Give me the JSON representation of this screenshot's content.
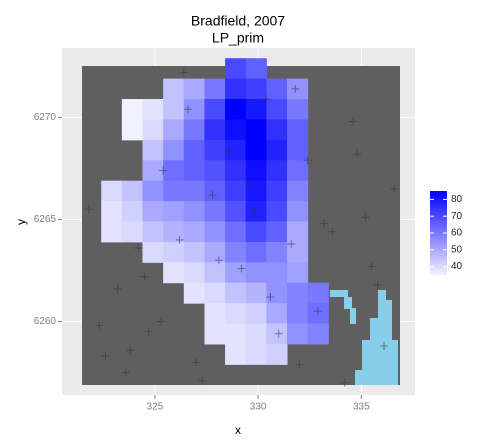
{
  "chart_data": {
    "type": "raster",
    "title": "Bradfield, 2007",
    "subtitle": "LP_prim",
    "x_label": "x",
    "y_label": "y",
    "xlim": [
      320.5,
      337.6
    ],
    "ylim": [
      6256.4,
      6273.4
    ],
    "xticks": [
      325,
      330,
      335
    ],
    "yticks": [
      6260,
      6265,
      6270
    ],
    "grid": true,
    "na_color": "#5f5f5f",
    "low_color": "#f2f2ff",
    "high_color": "#0000ff",
    "zlim": [
      35,
      85
    ],
    "legend_ticks": [
      40,
      50,
      60,
      70,
      80
    ],
    "raster": {
      "x": [
        321.9,
        322.9,
        323.9,
        324.9,
        325.9,
        326.9,
        327.9,
        328.9,
        329.9,
        330.9,
        331.9,
        332.9,
        333.9,
        334.9,
        335.9,
        336.9
      ],
      "y": [
        6272.4,
        6271.4,
        6270.4,
        6269.4,
        6268.4,
        6267.4,
        6266.4,
        6265.4,
        6264.4,
        6263.4,
        6262.4,
        6261.4,
        6260.4,
        6259.4,
        6258.4,
        6257.4
      ],
      "z": [
        [
          null,
          null,
          null,
          null,
          null,
          null,
          null,
          70,
          65,
          null,
          null,
          null,
          null,
          null,
          null,
          null
        ],
        [
          null,
          null,
          null,
          null,
          45,
          50,
          60,
          75,
          72,
          65,
          55,
          null,
          null,
          null,
          null,
          null
        ],
        [
          null,
          null,
          35,
          38,
          45,
          55,
          70,
          85,
          80,
          70,
          60,
          null,
          null,
          null,
          null,
          null
        ],
        [
          null,
          null,
          35,
          40,
          50,
          60,
          75,
          82,
          85,
          75,
          65,
          null,
          null,
          null,
          null,
          null
        ],
        [
          null,
          null,
          null,
          45,
          55,
          65,
          72,
          78,
          85,
          78,
          65,
          null,
          null,
          null,
          null,
          null
        ],
        [
          null,
          null,
          null,
          50,
          62,
          65,
          68,
          75,
          82,
          75,
          62,
          null,
          null,
          null,
          null,
          null
        ],
        [
          null,
          40,
          45,
          55,
          60,
          60,
          65,
          72,
          80,
          72,
          58,
          null,
          null,
          null,
          null,
          null
        ],
        [
          null,
          38,
          42,
          50,
          52,
          55,
          60,
          68,
          78,
          70,
          55,
          null,
          null,
          null,
          null,
          null
        ],
        [
          null,
          38,
          40,
          45,
          48,
          50,
          55,
          62,
          70,
          65,
          50,
          null,
          null,
          null,
          null,
          null
        ],
        [
          null,
          null,
          null,
          40,
          42,
          45,
          50,
          58,
          62,
          58,
          50,
          null,
          null,
          null,
          null,
          null
        ],
        [
          null,
          null,
          null,
          null,
          38,
          40,
          45,
          52,
          55,
          55,
          52,
          null,
          null,
          null,
          null,
          null
        ],
        [
          null,
          null,
          null,
          null,
          null,
          38,
          40,
          45,
          48,
          55,
          58,
          60,
          null,
          null,
          null,
          null
        ],
        [
          null,
          null,
          null,
          null,
          null,
          null,
          38,
          40,
          42,
          50,
          58,
          62,
          null,
          null,
          null,
          null
        ],
        [
          null,
          null,
          null,
          null,
          null,
          null,
          38,
          38,
          40,
          45,
          55,
          58,
          null,
          null,
          null,
          null
        ],
        [
          null,
          null,
          null,
          null,
          null,
          null,
          null,
          38,
          40,
          42,
          null,
          null,
          null,
          null,
          null,
          null
        ],
        [
          null,
          null,
          null,
          null,
          null,
          null,
          null,
          null,
          null,
          null,
          null,
          null,
          null,
          null,
          null,
          null
        ]
      ]
    },
    "points": {
      "x": [
        321.8,
        322.3,
        322.6,
        323.2,
        323.6,
        324.2,
        324.7,
        325.4,
        326.2,
        326.6,
        327.3,
        327.8,
        328.6,
        329.2,
        329.8,
        330.4,
        331.0,
        331.6,
        332.4,
        332.9,
        333.6,
        334.2,
        334.8,
        335.5,
        336.1,
        336.6,
        325.3,
        326.4,
        328.1,
        329.5,
        330.6,
        331.8,
        333.2,
        334.6,
        335.8,
        323.8,
        324.5,
        327.0,
        332.0,
        335.2
      ],
      "y": [
        6265.5,
        6259.8,
        6258.3,
        6261.6,
        6257.5,
        6263.6,
        6259.5,
        6267.4,
        6264.0,
        6270.4,
        6257.1,
        6266.2,
        6268.4,
        6262.6,
        6265.3,
        6270.9,
        6259.4,
        6263.8,
        6267.9,
        6260.5,
        6264.4,
        6257.0,
        6268.2,
        6262.7,
        6258.8,
        6266.5,
        6260.0,
        6272.2,
        6263.0,
        6266.8,
        6261.2,
        6271.4,
        6264.8,
        6269.8,
        6261.8,
        6258.6,
        6262.2,
        6258.0,
        6257.9,
        6265.1
      ]
    }
  }
}
